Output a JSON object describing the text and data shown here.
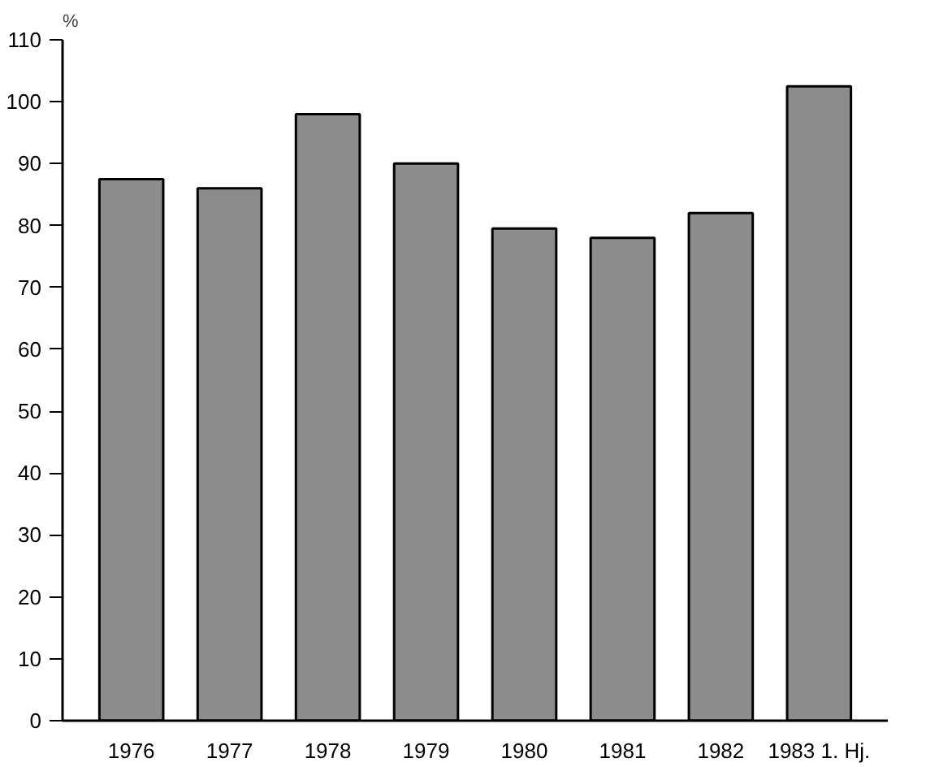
{
  "chart_data": {
    "type": "bar",
    "ylabel": "%",
    "categories": [
      "1976",
      "1977",
      "1978",
      "1979",
      "1980",
      "1981",
      "1982",
      "1983 1. Hj."
    ],
    "values": [
      87.5,
      86,
      98,
      90,
      79.5,
      78,
      82,
      102.5
    ],
    "color": "#8c8c8c",
    "ylim": [
      0,
      110
    ],
    "yticks": [
      0,
      10,
      20,
      30,
      40,
      50,
      60,
      70,
      80,
      90,
      100,
      110
    ],
    "grid": false
  }
}
